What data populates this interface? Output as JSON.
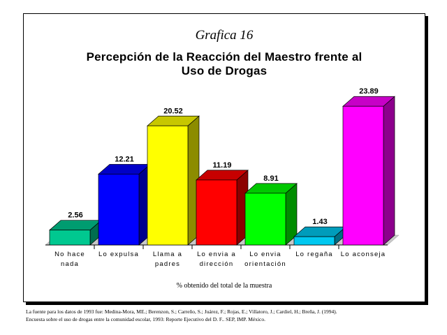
{
  "chart_label": "Grafica 16",
  "title_lines": [
    "Percepción de la Reacción del Maestro frente al",
    "Uso de Drogas"
  ],
  "caption": "% obtenido del total de la muestra",
  "source_lines": [
    "La fuente para los datos de 1993 fue: Medina-Mora, ME.; Berenzon, S.; Carreño, S.; Juárez, F.; Rojas, E.; Villatoro, J.; Cardiel, H.; Breña, J. (1994).",
    "Encuesta sobre el uso de drogas entre la comunidad escolar, 1993: Reporte Ejecutivo del D. F.. SEP, IMP. México."
  ],
  "chart_data": {
    "type": "bar",
    "style": "3d",
    "title": "Percepción de la Reacción del Maestro frente al Uso de Drogas",
    "categories": [
      [
        "No hace",
        "nada"
      ],
      [
        "Lo expulsa"
      ],
      [
        "Llama a",
        "padres"
      ],
      [
        "Lo envia a",
        "dirección"
      ],
      [
        "Lo envia",
        "orientación"
      ],
      [
        "Lo regaña"
      ],
      [
        "Lo aconseja"
      ]
    ],
    "values": [
      2.56,
      12.21,
      20.52,
      11.19,
      8.91,
      1.43,
      23.89
    ],
    "value_labels": [
      "2.56",
      "12.21",
      "20.52",
      "11.19",
      "8.91",
      "1.43",
      "23.89"
    ],
    "colors": [
      "#00c890",
      "#0000ff",
      "#ffff00",
      "#ff0000",
      "#00ff00",
      "#00c8f0",
      "#ff00ff"
    ],
    "xlabel": "% obtenido del total de la muestra",
    "ylabel": "",
    "ylim": [
      0,
      25
    ],
    "grid": false,
    "legend": "none"
  }
}
